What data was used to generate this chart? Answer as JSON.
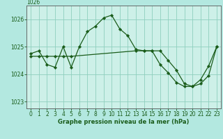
{
  "title": "Graphe pression niveau de la mer (hPa)",
  "background_color": "#b3e8e0",
  "plot_bg_color": "#cdf0e8",
  "grid_color": "#8ecfbe",
  "line_color": "#1a5c1a",
  "marker_color": "#1a5c1a",
  "xlim": [
    -0.5,
    23.5
  ],
  "ylim": [
    1022.75,
    1026.5
  ],
  "yticks": [
    1023,
    1024,
    1025,
    1026
  ],
  "xticks": [
    0,
    1,
    2,
    3,
    4,
    5,
    6,
    7,
    8,
    9,
    10,
    11,
    12,
    13,
    14,
    15,
    16,
    17,
    18,
    19,
    20,
    21,
    22,
    23
  ],
  "series1_x": [
    0,
    1,
    2,
    3,
    4,
    5,
    6,
    7,
    8,
    9,
    10,
    11,
    12,
    13,
    14,
    15,
    16,
    17,
    18,
    19,
    20,
    21,
    22,
    23
  ],
  "series1_y": [
    1024.75,
    1024.85,
    1024.35,
    1024.25,
    1025.0,
    1024.25,
    1025.0,
    1025.55,
    1025.75,
    1026.05,
    1026.15,
    1025.65,
    1025.4,
    1024.9,
    1024.85,
    1024.85,
    1024.35,
    1024.05,
    1023.7,
    1023.55,
    1023.55,
    1023.8,
    1024.3,
    1025.0
  ],
  "series2_x": [
    0,
    1,
    2,
    3,
    4,
    5,
    13,
    14,
    15,
    16,
    17,
    18,
    19,
    20,
    21,
    22,
    23
  ],
  "series2_y": [
    1024.65,
    1024.65,
    1024.65,
    1024.65,
    1024.65,
    1024.65,
    1024.85,
    1024.85,
    1024.85,
    1024.85,
    1024.5,
    1024.15,
    1023.65,
    1023.55,
    1023.65,
    1023.95,
    1025.0
  ],
  "tick_fontsize": 5.5,
  "label_fontsize": 6.0,
  "top_label": "1026"
}
